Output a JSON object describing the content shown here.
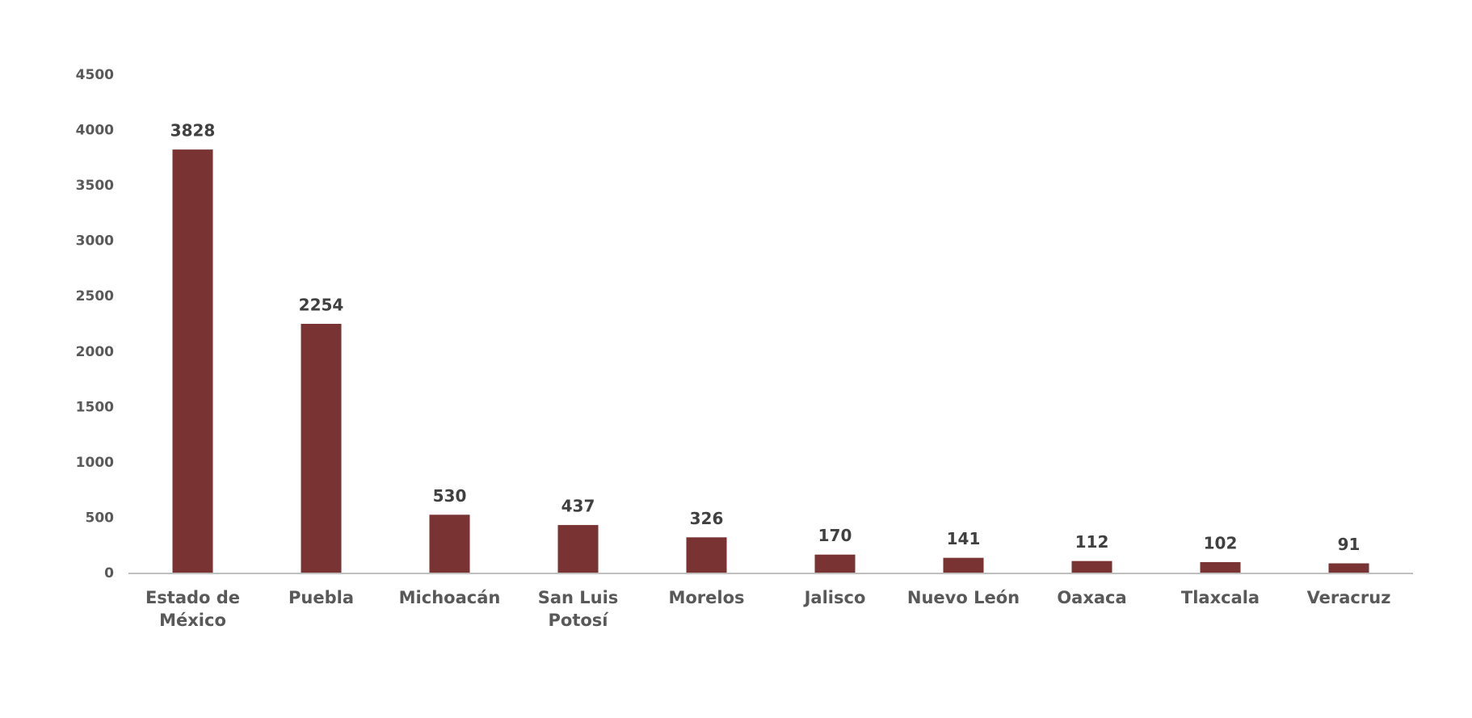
{
  "chart_data": {
    "type": "bar",
    "categories": [
      "Estado de México",
      "Puebla",
      "Michoacán",
      "San Luis Potosí",
      "Morelos",
      "Jalisco",
      "Nuevo León",
      "Oaxaca",
      "Tlaxcala",
      "Veracruz"
    ],
    "values": [
      3828,
      2254,
      530,
      437,
      326,
      170,
      141,
      112,
      102,
      91
    ],
    "color": "#7a3333",
    "ylim": [
      0,
      4500
    ],
    "yticks": [
      0,
      500,
      1000,
      1500,
      2000,
      2500,
      3000,
      3500,
      4000,
      4500
    ],
    "grid": false
  }
}
